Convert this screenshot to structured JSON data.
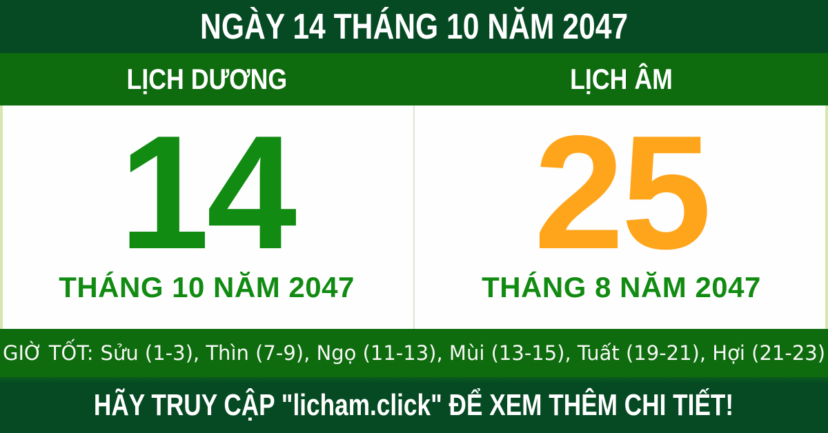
{
  "header": {
    "title": "NGÀY 14 THÁNG 10 NĂM 2047"
  },
  "columns": {
    "solar": {
      "label": "LỊCH DƯƠNG",
      "day": "14",
      "month_year": "THÁNG 10 NĂM 2047"
    },
    "lunar": {
      "label": "LỊCH ÂM",
      "day": "25",
      "month_year": "THÁNG 8 NĂM 2047"
    }
  },
  "good_hours": {
    "label": "GIỜ TỐT:",
    "hours_text": "Sửu (1-3), Thìn (7-9), Ngọ (11-13), Mùi (13-15), Tuất (19-21), Hợi (21-23)",
    "hours": [
      "Sửu (1-3)",
      "Thìn (7-9)",
      "Ngọ (11-13)",
      "Mùi (13-15)",
      "Tuất (19-21)",
      "Hợi (21-23)"
    ]
  },
  "footer": {
    "message": "HÃY TRUY CẬP \"licham.click\" ĐỂ XEM THÊM CHI TIẾT!"
  },
  "colors": {
    "dark_green": "#064a23",
    "medium_green": "#0e6b0e",
    "solar_day_green": "#128b12",
    "lunar_day_orange": "#ffa51c",
    "month_text_green": "#128b12",
    "pale_edge_border": "#d6e6ae",
    "column_divider": "#dce6d4",
    "text_white": "#ffffff"
  }
}
